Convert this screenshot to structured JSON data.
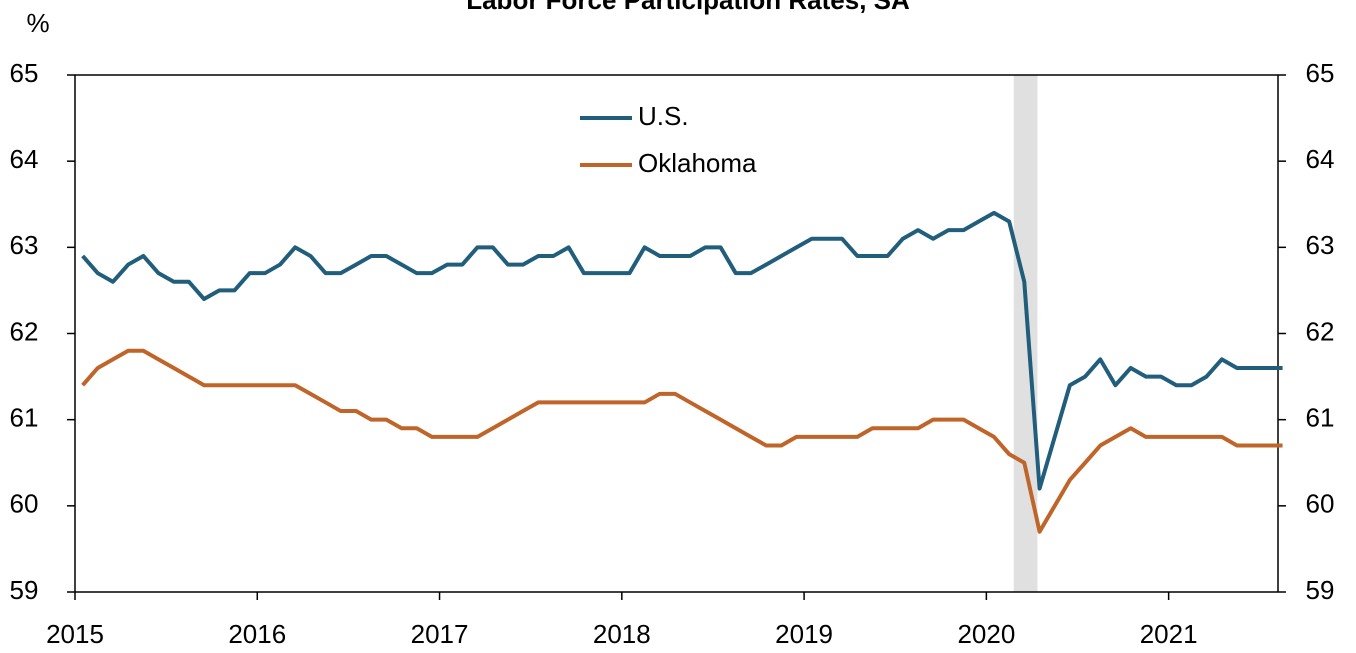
{
  "chart_data": {
    "type": "line",
    "title": "Labor Force Participation Rates, SA",
    "y_label": "%",
    "x": [
      2015.042,
      2015.125,
      2015.208,
      2015.292,
      2015.375,
      2015.458,
      2015.542,
      2015.625,
      2015.708,
      2015.792,
      2015.875,
      2015.958,
      2016.042,
      2016.125,
      2016.208,
      2016.292,
      2016.375,
      2016.458,
      2016.542,
      2016.625,
      2016.708,
      2016.792,
      2016.875,
      2016.958,
      2017.042,
      2017.125,
      2017.208,
      2017.292,
      2017.375,
      2017.458,
      2017.542,
      2017.625,
      2017.708,
      2017.792,
      2017.875,
      2017.958,
      2018.042,
      2018.125,
      2018.208,
      2018.292,
      2018.375,
      2018.458,
      2018.542,
      2018.625,
      2018.708,
      2018.792,
      2018.875,
      2018.958,
      2019.042,
      2019.125,
      2019.208,
      2019.292,
      2019.375,
      2019.458,
      2019.542,
      2019.625,
      2019.708,
      2019.792,
      2019.875,
      2019.958,
      2020.042,
      2020.125,
      2020.208,
      2020.292,
      2020.375,
      2020.458,
      2020.542,
      2020.625,
      2020.708,
      2020.792,
      2020.875,
      2020.958,
      2021.042,
      2021.125,
      2021.208,
      2021.292,
      2021.375,
      2021.458,
      2021.542,
      2021.625
    ],
    "series": [
      {
        "name": "U.S.",
        "color": "#215e7b",
        "values": [
          62.9,
          62.7,
          62.6,
          62.8,
          62.9,
          62.7,
          62.6,
          62.6,
          62.4,
          62.5,
          62.5,
          62.7,
          62.7,
          62.8,
          63.0,
          62.9,
          62.7,
          62.7,
          62.8,
          62.9,
          62.9,
          62.8,
          62.7,
          62.7,
          62.8,
          62.8,
          63.0,
          63.0,
          62.8,
          62.8,
          62.9,
          62.9,
          63.0,
          62.7,
          62.7,
          62.7,
          62.7,
          63.0,
          62.9,
          62.9,
          62.9,
          63.0,
          63.0,
          62.7,
          62.7,
          62.8,
          62.9,
          63.0,
          63.1,
          63.1,
          63.1,
          62.9,
          62.9,
          62.9,
          63.1,
          63.2,
          63.1,
          63.2,
          63.2,
          63.3,
          63.4,
          63.3,
          62.6,
          60.2,
          60.8,
          61.4,
          61.5,
          61.7,
          61.4,
          61.6,
          61.5,
          61.5,
          61.4,
          61.4,
          61.5,
          61.7,
          61.6,
          61.6,
          61.6,
          61.6
        ]
      },
      {
        "name": "Oklahoma",
        "color": "#c0652a",
        "values": [
          61.4,
          61.6,
          61.7,
          61.8,
          61.8,
          61.7,
          61.6,
          61.5,
          61.4,
          61.4,
          61.4,
          61.4,
          61.4,
          61.4,
          61.4,
          61.3,
          61.2,
          61.1,
          61.1,
          61.0,
          61.0,
          60.9,
          60.9,
          60.8,
          60.8,
          60.8,
          60.8,
          60.9,
          61.0,
          61.1,
          61.2,
          61.2,
          61.2,
          61.2,
          61.2,
          61.2,
          61.2,
          61.2,
          61.3,
          61.3,
          61.2,
          61.1,
          61.0,
          60.9,
          60.8,
          60.7,
          60.7,
          60.8,
          60.8,
          60.8,
          60.8,
          60.8,
          60.9,
          60.9,
          60.9,
          60.9,
          61.0,
          61.0,
          61.0,
          60.9,
          60.8,
          60.6,
          60.5,
          59.7,
          60.0,
          60.3,
          60.5,
          60.7,
          60.8,
          60.9,
          60.8,
          60.8,
          60.8,
          60.8,
          60.8,
          60.8,
          60.7,
          60.7,
          60.7,
          60.7
        ]
      }
    ],
    "recession": [
      2020.15,
      2020.28
    ],
    "recession_color": "#e0e0e0",
    "xlim": [
      2015,
      2021.6
    ],
    "xticks": [
      2015,
      2016,
      2017,
      2018,
      2019,
      2020,
      2021
    ],
    "ylim": [
      59,
      65
    ],
    "yticks": [
      59,
      60,
      61,
      62,
      63,
      64,
      65
    ],
    "y2lim": [
      59,
      65
    ],
    "y2ticks": [
      59,
      60,
      61,
      62,
      63,
      64,
      65
    ],
    "grid": false,
    "legend": "top-center"
  }
}
